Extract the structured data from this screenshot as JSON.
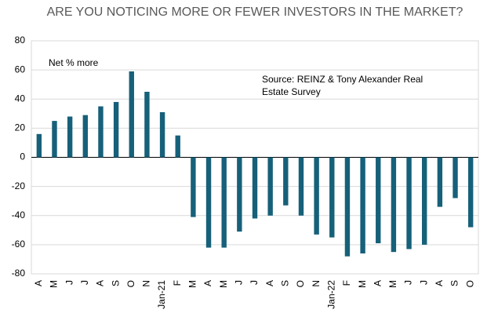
{
  "chart_data": {
    "type": "bar",
    "title": "ARE YOU NOTICING MORE OR FEWER INVESTORS IN THE MARKET?",
    "annotations": [
      "Net % more",
      "Source: REINZ & Tony Alexander Real Estate Survey"
    ],
    "categories": [
      "A",
      "M",
      "J",
      "J",
      "A",
      "S",
      "O",
      "N",
      "Jan-21",
      "F",
      "M",
      "A",
      "M",
      "J",
      "J",
      "A",
      "S",
      "O",
      "N",
      "Jan-22",
      "F",
      "M",
      "A",
      "M",
      "J",
      "J",
      "A",
      "S",
      "O"
    ],
    "values": [
      16,
      25,
      28,
      29,
      35,
      38,
      59,
      45,
      31,
      15,
      -41,
      -62,
      -62,
      -51,
      -42,
      -40,
      -33,
      -40,
      -53,
      -55,
      -68,
      -66,
      -59,
      -65,
      -63,
      -60,
      -34,
      -28,
      -48
    ],
    "color": "#17607a",
    "ylim": [
      -80,
      80
    ],
    "yticks": [
      -80,
      -60,
      -40,
      -20,
      0,
      20,
      40,
      60,
      80
    ],
    "grid": true
  }
}
